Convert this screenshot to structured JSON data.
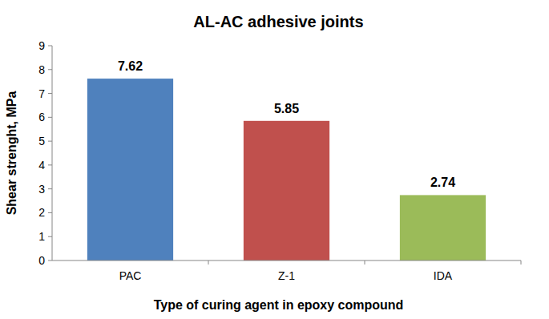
{
  "chart_data": {
    "type": "bar",
    "title": "AL-AC adhesive joints",
    "x_label": "Type of curing agent in epoxy compound",
    "y_label": "Shear strenght, MPa",
    "categories": [
      "PAC",
      "Z-1",
      "IDA"
    ],
    "values": [
      7.62,
      5.85,
      2.74
    ],
    "colors": [
      "#4f81bd",
      "#c0504d",
      "#9bbb59"
    ],
    "ylim": [
      0,
      9
    ],
    "yticks": [
      0,
      1,
      2,
      3,
      4,
      5,
      6,
      7,
      8,
      9
    ],
    "grid": false,
    "data_labels": true
  }
}
